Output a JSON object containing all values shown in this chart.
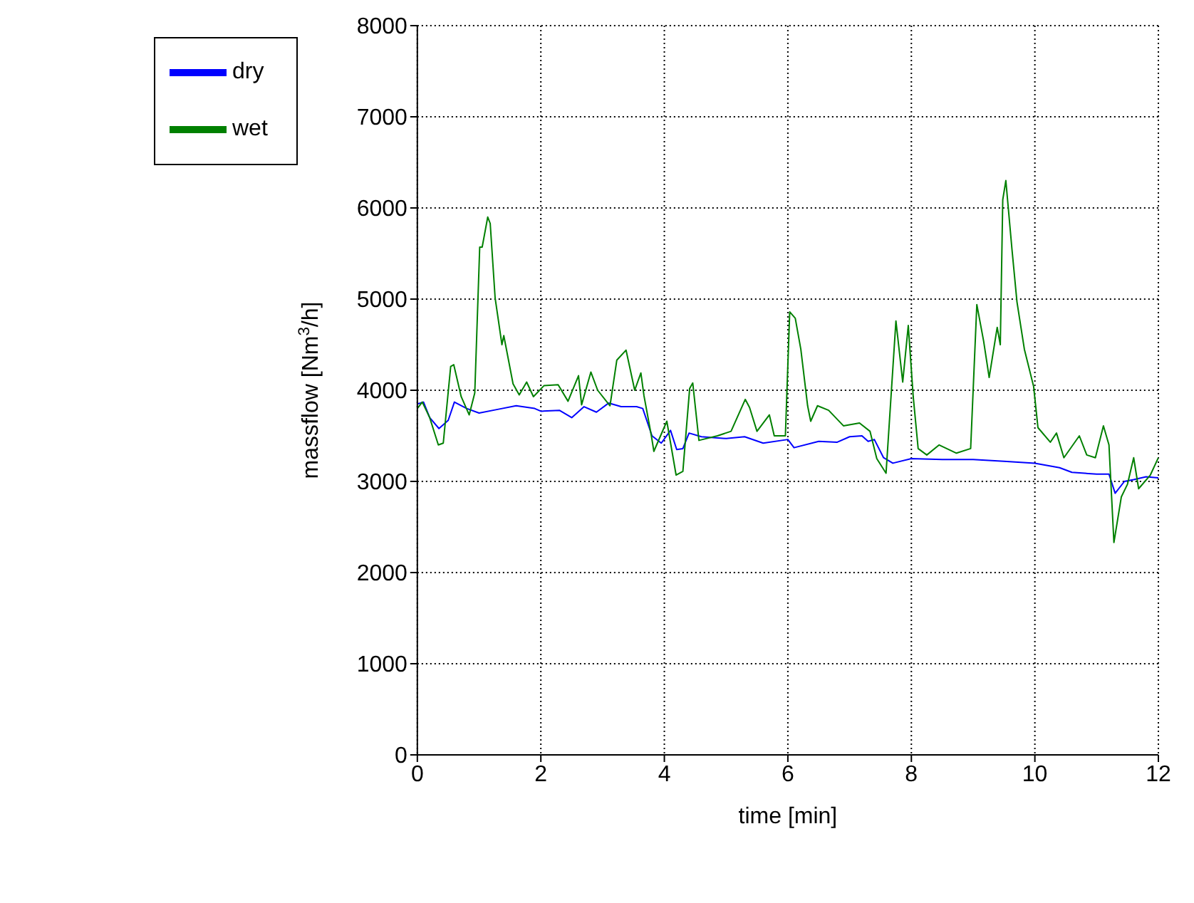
{
  "chart_data": {
    "type": "line",
    "xlabel": "time [min]",
    "ylabel": "massflow [Nm$^{3}$/h]",
    "xlim": [
      0,
      12
    ],
    "xticks": [
      0,
      2,
      4,
      6,
      8,
      10,
      12
    ],
    "ylim": [
      0,
      8000
    ],
    "yticks": [
      0,
      1000,
      2000,
      3000,
      4000,
      5000,
      6000,
      7000,
      8000
    ],
    "grid": true,
    "legend": "top left",
    "marker": "none",
    "line_style": "solid",
    "series": [
      {
        "name": "dry",
        "color": "#0000ff",
        "x": [
          0,
          0.1,
          0.2,
          0.35,
          0.5,
          0.6,
          0.8,
          1.0,
          1.3,
          1.6,
          1.9,
          2.0,
          2.3,
          2.5,
          2.7,
          2.9,
          3.1,
          3.3,
          3.55,
          3.65,
          3.8,
          3.95,
          4.1,
          4.2,
          4.3,
          4.4,
          4.6,
          5.0,
          5.3,
          5.6,
          6.0,
          6.1,
          6.5,
          6.8,
          7.0,
          7.2,
          7.3,
          7.4,
          7.55,
          7.7,
          8.0,
          8.5,
          9.0,
          9.5,
          10.0,
          10.4,
          10.6,
          11.0,
          11.2,
          11.3,
          11.45,
          11.6,
          11.8,
          12.0
        ],
        "values": [
          3850,
          3870,
          3700,
          3580,
          3670,
          3870,
          3800,
          3750,
          3790,
          3830,
          3800,
          3770,
          3780,
          3700,
          3820,
          3760,
          3860,
          3820,
          3820,
          3800,
          3500,
          3420,
          3560,
          3350,
          3360,
          3530,
          3490,
          3470,
          3490,
          3420,
          3460,
          3370,
          3440,
          3430,
          3490,
          3500,
          3440,
          3460,
          3260,
          3200,
          3250,
          3240,
          3240,
          3220,
          3200,
          3150,
          3100,
          3080,
          3080,
          2870,
          3000,
          3020,
          3050,
          3040
        ]
      },
      {
        "name": "wet",
        "color": "#008000",
        "x": [
          0,
          0.08,
          0.2,
          0.34,
          0.42,
          0.54,
          0.59,
          0.71,
          0.84,
          0.93,
          1.01,
          1.05,
          1.14,
          1.18,
          1.26,
          1.37,
          1.4,
          1.55,
          1.65,
          1.77,
          1.88,
          2.05,
          2.28,
          2.44,
          2.61,
          2.66,
          2.81,
          2.92,
          3.12,
          3.23,
          3.38,
          3.52,
          3.62,
          3.67,
          3.79,
          3.83,
          4.04,
          4.19,
          4.3,
          4.41,
          4.46,
          4.56,
          4.86,
          5.08,
          5.31,
          5.38,
          5.5,
          5.7,
          5.78,
          5.96,
          6.03,
          6.12,
          6.21,
          6.32,
          6.37,
          6.48,
          6.66,
          6.9,
          7.16,
          7.33,
          7.44,
          7.59,
          7.75,
          7.86,
          7.95,
          8.03,
          8.11,
          8.25,
          8.45,
          8.73,
          8.96,
          9.06,
          9.17,
          9.26,
          9.39,
          9.44,
          9.48,
          9.53,
          9.63,
          9.71,
          9.83,
          9.98,
          10.05,
          10.25,
          10.35,
          10.47,
          10.72,
          10.84,
          10.98,
          11.11,
          11.2,
          11.28,
          11.4,
          11.5,
          11.6,
          11.68,
          11.87,
          12.0
        ],
        "values": [
          3800,
          3870,
          3700,
          3400,
          3420,
          4260,
          4280,
          3930,
          3730,
          3970,
          5570,
          5570,
          5900,
          5830,
          5010,
          4500,
          4600,
          4070,
          3950,
          4090,
          3930,
          4050,
          4060,
          3880,
          4160,
          3840,
          4200,
          4000,
          3830,
          4330,
          4440,
          4000,
          4190,
          3940,
          3500,
          3330,
          3660,
          3070,
          3110,
          4020,
          4080,
          3450,
          3500,
          3550,
          3900,
          3810,
          3550,
          3730,
          3500,
          3500,
          4860,
          4790,
          4450,
          3830,
          3660,
          3830,
          3780,
          3610,
          3640,
          3550,
          3250,
          3090,
          4760,
          4090,
          4710,
          3930,
          3360,
          3290,
          3400,
          3310,
          3360,
          4940,
          4540,
          4140,
          4690,
          4500,
          6090,
          6300,
          5540,
          4970,
          4450,
          4040,
          3590,
          3430,
          3530,
          3260,
          3500,
          3290,
          3260,
          3610,
          3400,
          2330,
          2830,
          2970,
          3260,
          2920,
          3070,
          3260
        ]
      }
    ]
  }
}
